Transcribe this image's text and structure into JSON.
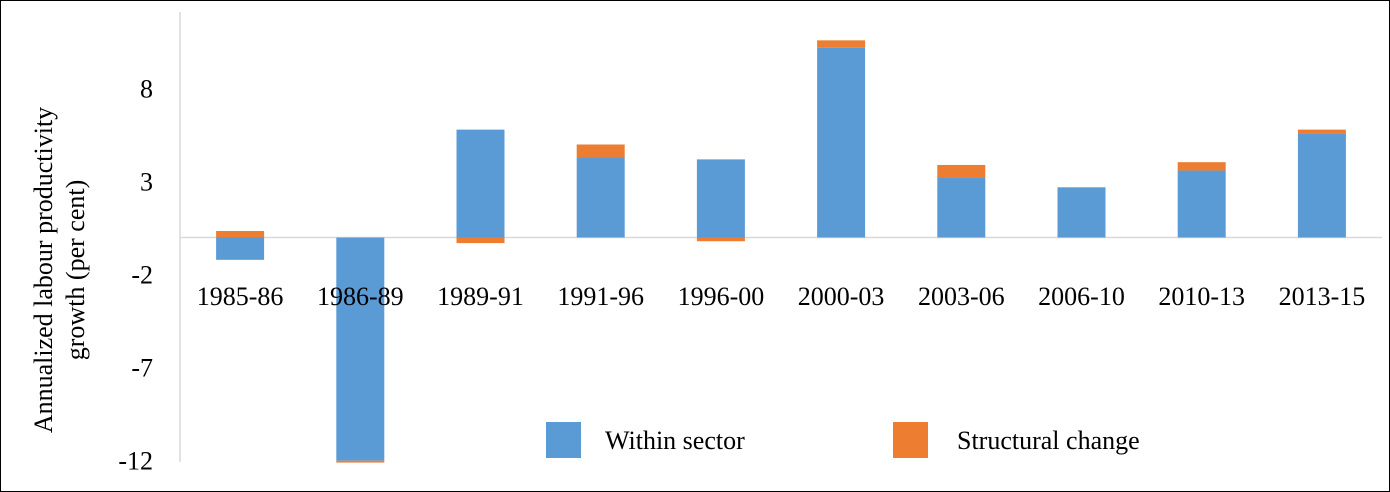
{
  "chart_data": {
    "type": "bar",
    "stacked": true,
    "title": "",
    "xlabel": "",
    "ylabel_lines": [
      "Annualized labour productivity",
      "growth (per cent)"
    ],
    "categories": [
      "1985-86",
      "1986-89",
      "1989-91",
      "1991-96",
      "1996-00",
      "2000-03",
      "2003-06",
      "2006-10",
      "2010-13",
      "2013-15"
    ],
    "series": [
      {
        "name": "Within sector",
        "color": "#5B9BD5",
        "values": [
          -1.2,
          -12.0,
          5.8,
          4.3,
          4.2,
          10.2,
          3.2,
          2.7,
          3.6,
          5.6
        ]
      },
      {
        "name": "Structural change",
        "color": "#ED7D31",
        "values": [
          0.35,
          -0.1,
          -0.3,
          0.7,
          -0.2,
          0.4,
          0.7,
          0.0,
          0.45,
          0.2
        ]
      }
    ],
    "yticks": [
      "8",
      "3",
      "-2",
      "-7",
      "-12"
    ],
    "ylim": [
      -12,
      12
    ],
    "grid": false,
    "legend_position": "bottom-right"
  }
}
